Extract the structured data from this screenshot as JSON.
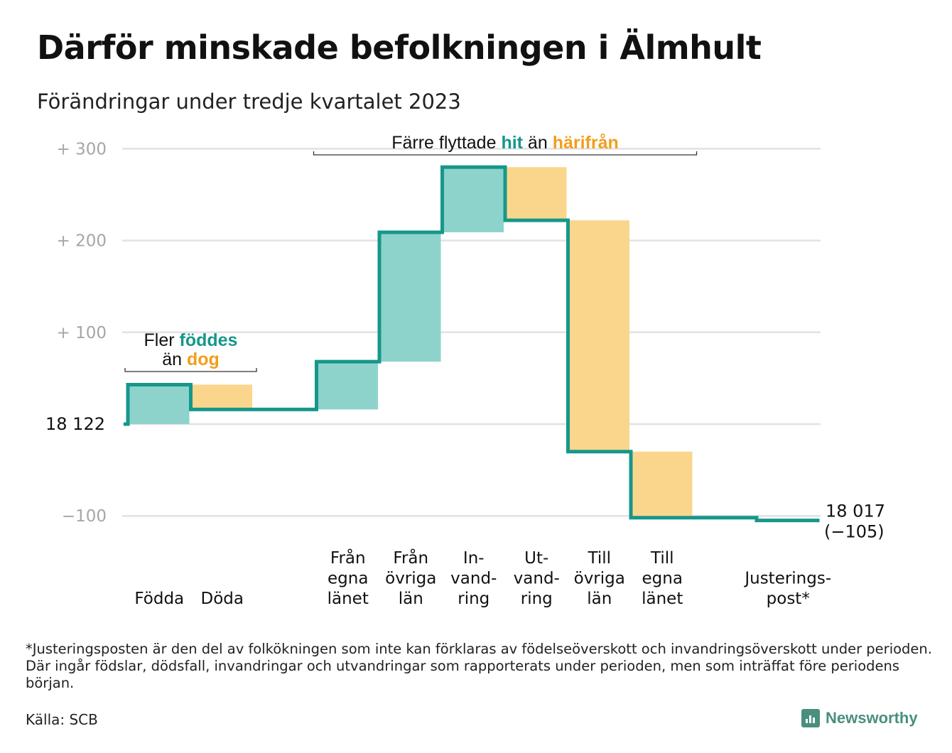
{
  "title": "Därför minskade befolkningen i Älmhult",
  "subtitle": "Förändringar under tredje kvartalet 2023",
  "chart_data": {
    "type": "waterfall",
    "start_value": 18122,
    "start_label": "18 122",
    "end_label": "18 017",
    "end_change_label": "(−105)",
    "y_ticks": [
      {
        "value": 300,
        "label": "+ 300"
      },
      {
        "value": 200,
        "label": "+ 200"
      },
      {
        "value": 100,
        "label": "+ 100"
      },
      {
        "value": -100,
        "label": "−100"
      }
    ],
    "ylim": [
      -105,
      300
    ],
    "grid": true,
    "steps": [
      {
        "label_lines": [
          "Födda"
        ],
        "change": 43,
        "kind": "in"
      },
      {
        "label_lines": [
          "Döda"
        ],
        "change": -27,
        "kind": "out"
      },
      {
        "label_lines": [],
        "change": 0,
        "kind": "none"
      },
      {
        "label_lines": [
          "Från",
          "egna",
          "länet"
        ],
        "change": 52,
        "kind": "in"
      },
      {
        "label_lines": [
          "Från",
          "övriga",
          "län"
        ],
        "change": 141,
        "kind": "in"
      },
      {
        "label_lines": [
          "In-",
          "vand-",
          "ring"
        ],
        "change": 71,
        "kind": "in"
      },
      {
        "label_lines": [
          "Ut-",
          "vand-",
          "ring"
        ],
        "change": -58,
        "kind": "out"
      },
      {
        "label_lines": [
          "Till",
          "övriga",
          "län"
        ],
        "change": -252,
        "kind": "out"
      },
      {
        "label_lines": [
          "Till",
          "egna",
          "länet"
        ],
        "change": -72,
        "kind": "out"
      },
      {
        "label_lines": [],
        "change": 0,
        "kind": "none"
      },
      {
        "label_lines": [
          "Justerings-",
          "post*"
        ],
        "change": -3,
        "kind": "adjust"
      }
    ],
    "annotations": [
      {
        "lines": [
          [
            {
              "text": "Fler ",
              "style": "plain"
            },
            {
              "text": "föddes",
              "style": "in"
            }
          ],
          [
            {
              "text": "än ",
              "style": "plain"
            },
            {
              "text": "dog",
              "style": "out"
            }
          ]
        ],
        "from_step": 0,
        "to_step": 1
      },
      {
        "lines": [
          [
            {
              "text": "Färre flyttade ",
              "style": "plain"
            },
            {
              "text": "hit",
              "style": "in"
            },
            {
              "text": " än ",
              "style": "plain"
            },
            {
              "text": "härifrån",
              "style": "out"
            }
          ]
        ],
        "from_step": 3,
        "to_step": 8
      }
    ],
    "colors": {
      "in_fill": "#8dd3cb",
      "out_fill": "#fad68d",
      "line": "#16978a",
      "in_text": "#16978a",
      "out_text": "#f29e1d",
      "grid": "#e2e2e2",
      "tick_text": "#a6a6a6"
    }
  },
  "footnote": "*Justeringsposten är den del av folkökningen som inte kan förklaras av födelseöverskott och invandringsöverskott under perioden. Där ingår födslar, dödsfall, invandringar och utvandringar som rapporterats under perioden, men som inträffat före periodens början.",
  "source": "Källa: SCB",
  "brand": {
    "name": "Newsworthy",
    "color": "#4a8f7e"
  }
}
